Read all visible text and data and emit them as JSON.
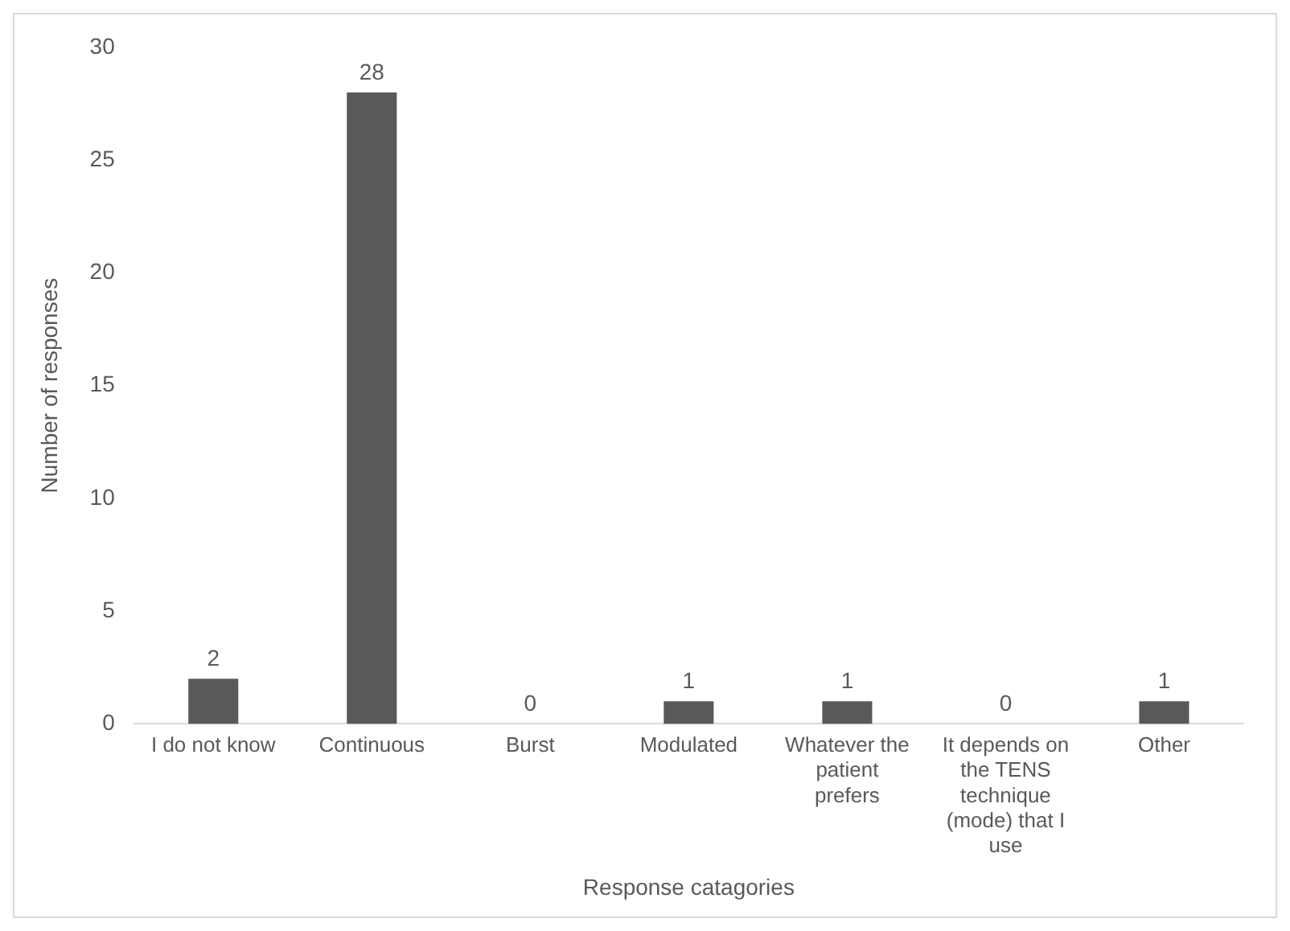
{
  "chart_data": {
    "type": "bar",
    "xlabel": "Response catagories",
    "ylabel": "Number of responses",
    "categories": [
      "I do not know",
      "Continuous",
      "Burst",
      "Modulated",
      "Whatever the patient prefers",
      "It depends on the TENS technique (mode) that I use",
      "Other"
    ],
    "values": [
      2,
      28,
      0,
      1,
      1,
      0,
      1
    ],
    "color": "#595959",
    "ylim": [
      0,
      30
    ],
    "yticks": [
      0,
      5,
      10,
      15,
      20,
      25,
      30
    ],
    "grid": false,
    "legend": false,
    "data_labels": true
  }
}
